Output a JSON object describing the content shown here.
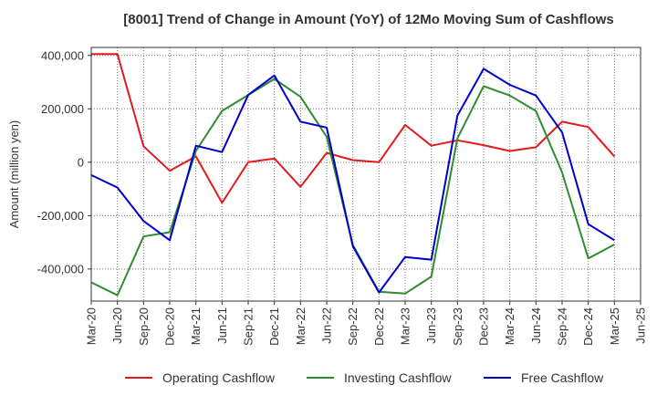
{
  "chart_data": {
    "type": "line",
    "title": "[8001]  Trend of Change in Amount (YoY) of 12Mo Moving Sum of Cashflows",
    "xlabel": "",
    "ylabel": "Amount (million yen)",
    "ylim": [
      -520000,
      430000
    ],
    "yticks": [
      400000,
      200000,
      0,
      -200000,
      -400000
    ],
    "ytick_labels": [
      "400,000",
      "200,000",
      "0",
      "-200,000",
      "-400,000"
    ],
    "grid": true,
    "legend_position": "bottom",
    "categories": [
      "Mar-20",
      "Jun-20",
      "Sep-20",
      "Dec-20",
      "Mar-21",
      "Jun-21",
      "Sep-21",
      "Dec-21",
      "Mar-22",
      "Jun-22",
      "Sep-22",
      "Dec-22",
      "Mar-23",
      "Jun-23",
      "Sep-23",
      "Dec-23",
      "Mar-24",
      "Jun-24",
      "Sep-24",
      "Dec-24",
      "Mar-25",
      "Jun-25"
    ],
    "series": [
      {
        "name": "Operating Cashflow",
        "color": "#e31a1c",
        "values": [
          405000,
          405000,
          60000,
          -32000,
          22000,
          -152000,
          0,
          14000,
          -92000,
          35000,
          8000,
          0,
          140000,
          62000,
          82000,
          64000,
          42000,
          56000,
          152000,
          132000,
          22000,
          null
        ]
      },
      {
        "name": "Investing Cashflow",
        "color": "#2e8b2e",
        "values": [
          -450000,
          -498000,
          -278000,
          -262000,
          42000,
          192000,
          252000,
          312000,
          245000,
          95000,
          -310000,
          -485000,
          -492000,
          -428000,
          90000,
          285000,
          250000,
          192000,
          -38000,
          -360000,
          -308000,
          null
        ]
      },
      {
        "name": "Free Cashflow",
        "color": "#0000cc",
        "values": [
          -48000,
          -95000,
          -220000,
          -292000,
          62000,
          38000,
          252000,
          325000,
          152000,
          130000,
          -315000,
          -488000,
          -355000,
          -365000,
          175000,
          350000,
          290000,
          250000,
          112000,
          -232000,
          -292000,
          null
        ]
      }
    ]
  }
}
